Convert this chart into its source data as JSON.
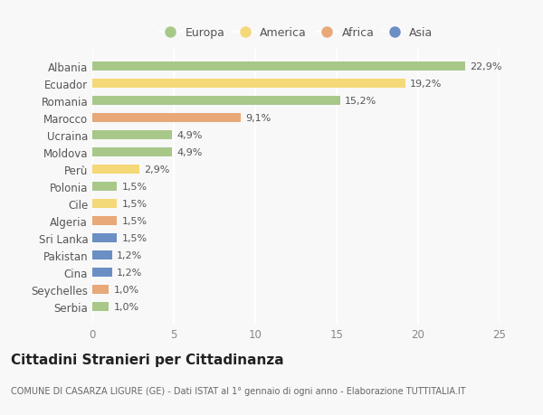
{
  "categories": [
    "Albania",
    "Ecuador",
    "Romania",
    "Marocco",
    "Ucraina",
    "Moldova",
    "Perù",
    "Polonia",
    "Cile",
    "Algeria",
    "Sri Lanka",
    "Pakistan",
    "Cina",
    "Seychelles",
    "Serbia"
  ],
  "values": [
    22.9,
    19.2,
    15.2,
    9.1,
    4.9,
    4.9,
    2.9,
    1.5,
    1.5,
    1.5,
    1.5,
    1.2,
    1.2,
    1.0,
    1.0
  ],
  "labels": [
    "22,9%",
    "19,2%",
    "15,2%",
    "9,1%",
    "4,9%",
    "4,9%",
    "2,9%",
    "1,5%",
    "1,5%",
    "1,5%",
    "1,5%",
    "1,2%",
    "1,2%",
    "1,0%",
    "1,0%"
  ],
  "continents": [
    "Europa",
    "America",
    "Europa",
    "Africa",
    "Europa",
    "Europa",
    "America",
    "Europa",
    "America",
    "Africa",
    "Asia",
    "Asia",
    "Asia",
    "Africa",
    "Europa"
  ],
  "continent_colors": {
    "Europa": "#a8c88a",
    "America": "#f5d878",
    "Africa": "#e8a878",
    "Asia": "#6b8fc4"
  },
  "legend_order": [
    "Europa",
    "America",
    "Africa",
    "Asia"
  ],
  "xlim": [
    0,
    25
  ],
  "xticks": [
    0,
    5,
    10,
    15,
    20,
    25
  ],
  "title": "Cittadini Stranieri per Cittadinanza",
  "subtitle": "COMUNE DI CASARZA LIGURE (GE) - Dati ISTAT al 1° gennaio di ogni anno - Elaborazione TUTTITALIA.IT",
  "background_color": "#f8f8f8",
  "bar_height": 0.55,
  "label_fontsize": 8.0,
  "tick_fontsize": 8.5,
  "title_fontsize": 11,
  "subtitle_fontsize": 7.0
}
